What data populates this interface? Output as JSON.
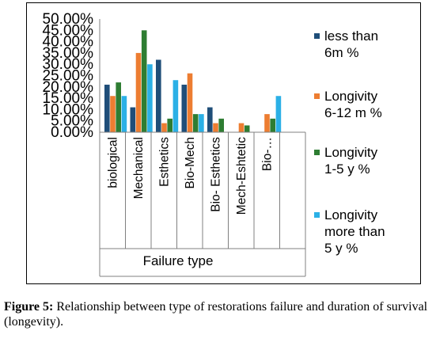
{
  "chart_data": {
    "type": "bar",
    "title": "",
    "xlabel": "Failure type",
    "ylabel": "",
    "ylim": [
      0,
      50
    ],
    "y_ticks": [
      "0.00%",
      "5.00%",
      "10.00%",
      "15.00%",
      "20.00%",
      "25.00%",
      "30.00%",
      "35.00%",
      "40.00%",
      "45.00%",
      "50.00%"
    ],
    "categories": [
      "biological",
      "Mechanical",
      "Esthetics",
      "Bio-Mech",
      "Bio- Esthetics",
      "Mech-Eshtetic",
      "Bio-…",
      ""
    ],
    "legend_position": "right",
    "grid": false,
    "series": [
      {
        "name": "less than 6m %",
        "legend_lines": [
          "less than",
          "6m %"
        ],
        "color": "#1f4e79",
        "values": [
          21,
          11,
          32,
          21,
          11,
          0,
          0,
          0
        ]
      },
      {
        "name": "Longivity 6-12 m %",
        "legend_lines": [
          "Longivity",
          "6-12 m %"
        ],
        "color": "#ed7d31",
        "values": [
          16,
          35,
          4,
          26,
          4,
          4,
          8,
          0
        ]
      },
      {
        "name": "Longivity 1-5 y %",
        "legend_lines": [
          "Longivity",
          "1-5 y %"
        ],
        "color": "#2e7d32",
        "values": [
          22,
          45,
          6,
          8,
          6,
          3,
          6,
          0
        ]
      },
      {
        "name": "Longivity more than 5 y %",
        "legend_lines": [
          "Longivity",
          "more than",
          "5 y %"
        ],
        "color": "#2bb0e6",
        "values": [
          16,
          30,
          23,
          8,
          0,
          0,
          16,
          0
        ]
      }
    ]
  },
  "caption": {
    "label": "Figure 5:",
    "text": " Relationship between type of restorations failure and duration of survival (longevity)."
  }
}
